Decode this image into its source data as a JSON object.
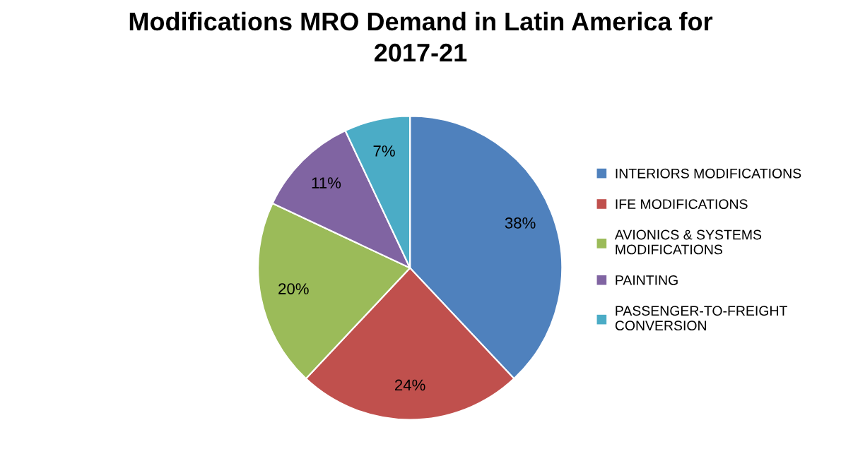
{
  "chart_data": {
    "type": "pie",
    "title": "Modifications MRO Demand in Latin America for\n2017-21",
    "categories": [
      "INTERIORS MODIFICATIONS",
      "IFE MODIFICATIONS",
      "AVIONICS & SYSTEMS\nMODIFICATIONS",
      "PAINTING",
      "PASSENGER-TO-FREIGHT\nCONVERSION"
    ],
    "values": [
      38,
      24,
      20,
      11,
      7
    ],
    "colors": [
      "#4f81bd",
      "#c0504d",
      "#9bbb59",
      "#8064a2",
      "#4bacc6"
    ],
    "value_labels": [
      "38%",
      "24%",
      "20%",
      "11%",
      "7%"
    ],
    "legend": "right"
  }
}
